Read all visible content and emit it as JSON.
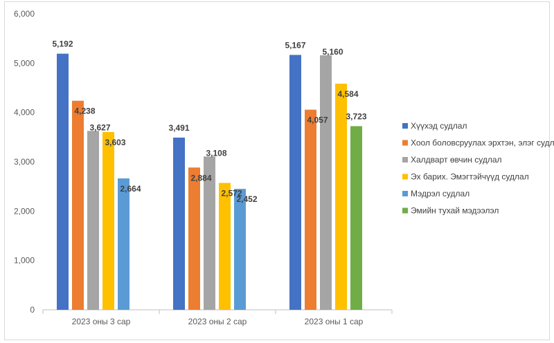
{
  "chart_data": {
    "type": "bar",
    "title": "",
    "xlabel": "",
    "ylabel": "",
    "ylim": [
      0,
      6000
    ],
    "yticks": [
      "0",
      "1,000",
      "2,000",
      "3,000",
      "4,000",
      "5,000",
      "6,000"
    ],
    "grid": false,
    "legend_position": "right",
    "categories": [
      "2023 оны 3 сар",
      "2023 оны 2 сар",
      "2023 оны 1 сар"
    ],
    "series": [
      {
        "name": "Хүүхэд судлал",
        "color": "#4472c4",
        "values": [
          5192,
          3491,
          5167
        ],
        "labels": [
          "5,192",
          "3,491",
          "5,167"
        ]
      },
      {
        "name": "Хоол боловсруулах эрхтэн, элэг судлал",
        "color": "#ed7d31",
        "values": [
          4238,
          2884,
          4057
        ],
        "labels": [
          "4,238",
          "2,884",
          "4,057"
        ]
      },
      {
        "name": "Халдварт өвчин судлал",
        "color": "#a5a5a5",
        "values": [
          3627,
          3108,
          5160
        ],
        "labels": [
          "3,627",
          "3,108",
          "5,160"
        ]
      },
      {
        "name": "Эх барих. Эмэгтэйчүүд судлал",
        "color": "#ffc000",
        "values": [
          3603,
          2572,
          4584
        ],
        "labels": [
          "3,603",
          "2,572",
          "4,584"
        ]
      },
      {
        "name": "Мэдрэл судлал",
        "color": "#5b9bd5",
        "values": [
          2664,
          2452,
          null
        ],
        "labels": [
          "2,664",
          "2,452",
          ""
        ]
      },
      {
        "name": "Эмийн тухай мэдээлэл",
        "color": "#70ad47",
        "values": [
          null,
          null,
          3723
        ],
        "labels": [
          "",
          "",
          "3,723"
        ]
      }
    ]
  }
}
